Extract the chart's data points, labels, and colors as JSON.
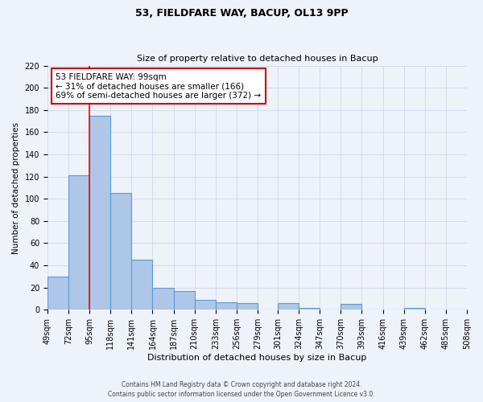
{
  "title": "53, FIELDFARE WAY, BACUP, OL13 9PP",
  "subtitle": "Size of property relative to detached houses in Bacup",
  "xlabel": "Distribution of detached houses by size in Bacup",
  "ylabel": "Number of detached properties",
  "footer_line1": "Contains HM Land Registry data © Crown copyright and database right 2024.",
  "footer_line2": "Contains public sector information licensed under the Open Government Licence v3.0.",
  "bin_edges": [
    49,
    72,
    95,
    118,
    141,
    164,
    187,
    210,
    233,
    256,
    279,
    301,
    324,
    347,
    370,
    393,
    416,
    439,
    462,
    485,
    508
  ],
  "bin_labels": [
    "49sqm",
    "72sqm",
    "95sqm",
    "118sqm",
    "141sqm",
    "164sqm",
    "187sqm",
    "210sqm",
    "233sqm",
    "256sqm",
    "279sqm",
    "301sqm",
    "324sqm",
    "347sqm",
    "370sqm",
    "393sqm",
    "416sqm",
    "439sqm",
    "462sqm",
    "485sqm",
    "508sqm"
  ],
  "counts": [
    30,
    121,
    175,
    105,
    45,
    20,
    17,
    9,
    7,
    6,
    0,
    6,
    2,
    0,
    5,
    0,
    0,
    2,
    0,
    0
  ],
  "bar_color": "#aec6e8",
  "bar_edge_color": "#5b9bd5",
  "red_line_x": 95,
  "ylim": [
    0,
    220
  ],
  "yticks": [
    0,
    20,
    40,
    60,
    80,
    100,
    120,
    140,
    160,
    180,
    200,
    220
  ],
  "annotation_title": "53 FIELDFARE WAY: 99sqm",
  "annotation_line1": "← 31% of detached houses are smaller (166)",
  "annotation_line2": "69% of semi-detached houses are larger (372) →",
  "annotation_box_color": "#ffffff",
  "annotation_box_edge_color": "#cc0000",
  "background_color": "#eef2f9",
  "grid_color": "#d0d8ea",
  "title_fontsize": 9,
  "subtitle_fontsize": 8,
  "ylabel_fontsize": 7.5,
  "xlabel_fontsize": 8,
  "tick_fontsize": 7,
  "annot_fontsize": 7.5,
  "footer_fontsize": 5.5
}
